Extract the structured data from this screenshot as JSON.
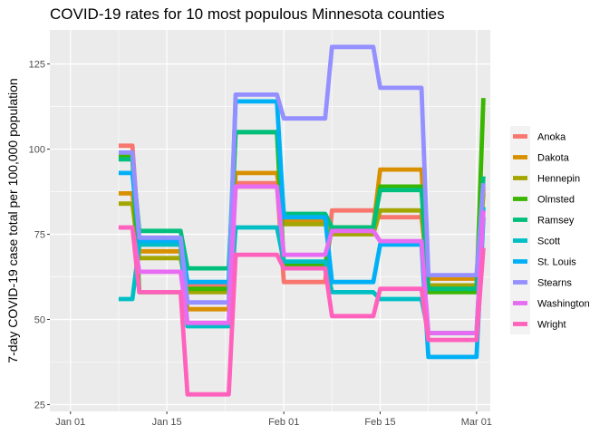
{
  "chart_data": {
    "type": "line",
    "title": "COVID-19 rates for 10 most populous Minnesota counties",
    "xlabel": "",
    "ylabel": "7-day COVID-19 case total per 100,000 population",
    "x_axis": {
      "type": "date",
      "range": [
        "2020-12-29",
        "2021-03-03"
      ],
      "ticks": [
        {
          "date": "2021-01-01",
          "label": "Jan 01"
        },
        {
          "date": "2021-01-15",
          "label": "Jan 15"
        },
        {
          "date": "2021-02-01",
          "label": "Feb 01"
        },
        {
          "date": "2021-02-15",
          "label": "Feb 15"
        },
        {
          "date": "2021-03-01",
          "label": "Mar 01"
        }
      ]
    },
    "y_axis": {
      "range": [
        23,
        135
      ],
      "ticks": [
        25,
        50,
        75,
        100,
        125
      ]
    },
    "grid": true,
    "legend_position": "right",
    "x": [
      "2021-01-08",
      "2021-01-10",
      "2021-01-11",
      "2021-01-17",
      "2021-01-18",
      "2021-01-24",
      "2021-01-25",
      "2021-01-31",
      "2021-02-01",
      "2021-02-07",
      "2021-02-08",
      "2021-02-14",
      "2021-02-15",
      "2021-02-21",
      "2021-02-22",
      "2021-02-28",
      "2021-03-01",
      "2021-03-02"
    ],
    "series": [
      {
        "name": "Anoka",
        "color": "#F8766D",
        "values": [
          101,
          101,
          72,
          72,
          60,
          60,
          90,
          90,
          61,
          61,
          82,
          82,
          80,
          80,
          62,
          62,
          62,
          88
        ]
      },
      {
        "name": "Dakota",
        "color": "#D89000",
        "values": [
          87,
          87,
          70,
          70,
          53,
          53,
          93,
          93,
          79,
          79,
          77,
          77,
          94,
          94,
          62,
          62,
          62,
          89
        ]
      },
      {
        "name": "Hennepin",
        "color": "#A3A500",
        "values": [
          84,
          84,
          68,
          68,
          58,
          58,
          89,
          89,
          78,
          78,
          75,
          75,
          82,
          82,
          60,
          60,
          60,
          87
        ]
      },
      {
        "name": "Olmsted",
        "color": "#39B600",
        "values": [
          98,
          98,
          58,
          58,
          59,
          59,
          105,
          105,
          66,
          66,
          77,
          77,
          89,
          89,
          58,
          58,
          58,
          115
        ]
      },
      {
        "name": "Ramsey",
        "color": "#00BF7D",
        "values": [
          97,
          97,
          76,
          76,
          65,
          65,
          105,
          105,
          81,
          81,
          77,
          77,
          88,
          88,
          59,
          59,
          59,
          92
        ]
      },
      {
        "name": "Scott",
        "color": "#00BFC4",
        "values": [
          56,
          56,
          72,
          72,
          48,
          48,
          77,
          77,
          67,
          67,
          58,
          58,
          56,
          56,
          46,
          46,
          46,
          83
        ]
      },
      {
        "name": "St. Louis",
        "color": "#00B0F6",
        "values": [
          93,
          93,
          73,
          73,
          61,
          61,
          114,
          114,
          80,
          80,
          61,
          61,
          72,
          72,
          39,
          39,
          39,
          80
        ]
      },
      {
        "name": "Stearns",
        "color": "#9590FF",
        "values": [
          99,
          99,
          74,
          74,
          55,
          55,
          116,
          116,
          109,
          109,
          130,
          130,
          118,
          118,
          63,
          63,
          63,
          90
        ]
      },
      {
        "name": "Washington",
        "color": "#E76BF3",
        "values": [
          77,
          77,
          64,
          64,
          49,
          49,
          89,
          89,
          69,
          69,
          76,
          76,
          73,
          73,
          46,
          46,
          46,
          82
        ]
      },
      {
        "name": "Wright",
        "color": "#FF62BC",
        "values": [
          77,
          77,
          58,
          58,
          28,
          28,
          69,
          69,
          65,
          65,
          51,
          51,
          59,
          59,
          44,
          44,
          44,
          71
        ]
      }
    ]
  }
}
